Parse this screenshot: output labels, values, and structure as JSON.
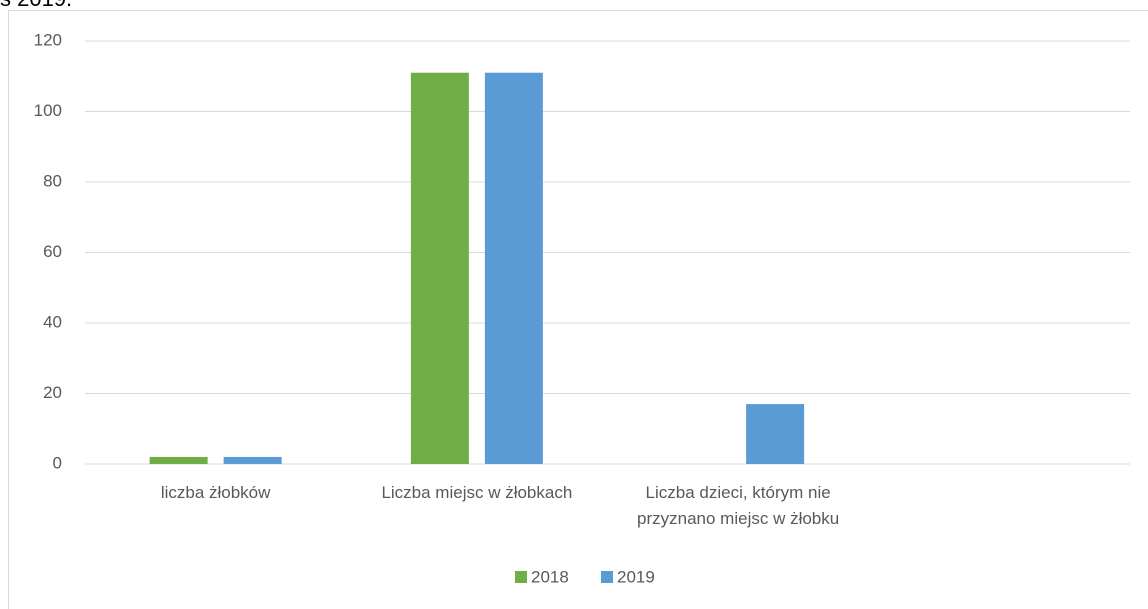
{
  "heading": "s 2019.",
  "chart_data": {
    "type": "bar",
    "categories": [
      "liczba żłobków",
      "Liczba miejsc w żłobkach",
      "Liczba dzieci, którym nie przyznano miejsc w żłobku",
      null
    ],
    "series": [
      {
        "name": "2018",
        "color": "#70ad47",
        "values": [
          2,
          111,
          0,
          null
        ]
      },
      {
        "name": "2019",
        "color": "#5b9bd5",
        "values": [
          2,
          111,
          17,
          null
        ]
      }
    ],
    "ylim": [
      0,
      120
    ],
    "yticks": [
      0,
      20,
      40,
      60,
      80,
      100,
      120
    ],
    "grid": true,
    "legend": "bottom"
  }
}
